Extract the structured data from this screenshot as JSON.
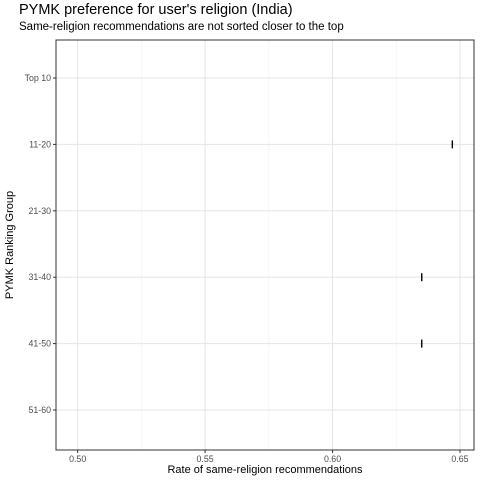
{
  "chart_data": {
    "type": "errorbar",
    "title": "PYMK preference for user's religion (India)",
    "subtitle": "Same-religion recommendations are not sorted closer to the top",
    "xlabel": "Rate of same-religion recommendations",
    "ylabel": "PYMK Ranking Group",
    "categories": [
      "Top 10",
      "11-20",
      "21-30",
      "31-40",
      "41-50",
      "51-60"
    ],
    "xlim": [
      0.4915,
      0.6555
    ],
    "xticks": [
      0.5,
      0.55,
      0.6,
      0.65
    ],
    "xtick_labels": [
      "0.50",
      "0.55",
      "0.60",
      "0.65"
    ],
    "grid": true,
    "series": [
      {
        "points": [
          {
            "category": "11-20",
            "x": 0.647
          },
          {
            "category": "31-40",
            "x": 0.635
          },
          {
            "category": "41-50",
            "x": 0.635
          }
        ]
      }
    ]
  }
}
